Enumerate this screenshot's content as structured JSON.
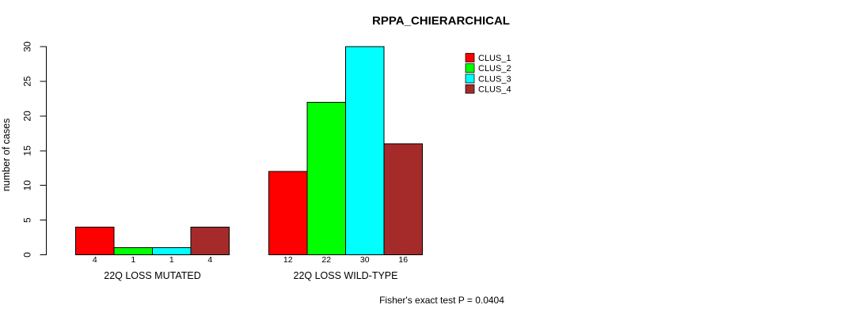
{
  "chart_data": {
    "type": "bar",
    "title": "RPPA_CHIERARCHICAL",
    "xlabel": "",
    "ylabel": "number of cases",
    "categories": [
      "22Q LOSS MUTATED",
      "22Q LOSS WILD-TYPE"
    ],
    "series": [
      {
        "name": "CLUS_1",
        "color": "#FF0000",
        "values": [
          4,
          12
        ]
      },
      {
        "name": "CLUS_2",
        "color": "#00FF00",
        "values": [
          1,
          22
        ]
      },
      {
        "name": "CLUS_3",
        "color": "#00FFFF",
        "values": [
          1,
          30
        ]
      },
      {
        "name": "CLUS_4",
        "color": "#A52A2A",
        "values": [
          4,
          16
        ]
      }
    ],
    "bar_value_labels": [
      [
        "4",
        "1",
        "1",
        "4"
      ],
      [
        "12",
        "22",
        "30",
        "16"
      ]
    ],
    "yticks": [
      0,
      5,
      10,
      15,
      20,
      25,
      30
    ],
    "ylim": [
      0,
      30
    ],
    "grid": "off",
    "legend_position": "top-right-inside",
    "legend_items": [
      "CLUS_1",
      "CLUS_2",
      "CLUS_3",
      "CLUS_4"
    ],
    "annotation": "Fisher's exact test P = 0.0404",
    "background_color": "#FFFFFF",
    "axis_color": "#000000",
    "bar_border_color": "#000000"
  }
}
